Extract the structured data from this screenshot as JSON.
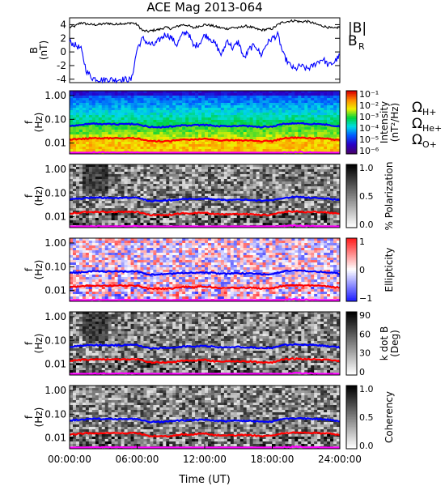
{
  "chart_data": {
    "type": "spectrogram",
    "title": "ACE Mag 2013-064",
    "xlabel": "Time (UT)",
    "xticks": [
      "00:00:00",
      "06:00:00",
      "12:00:00",
      "18:00:00",
      "24:00:00"
    ],
    "xrange_hours": [
      0,
      24
    ],
    "colors": {
      "B": "#000000",
      "BR": "#0000ff",
      "H+": "#0000ff",
      "He+": "#ff0000",
      "O+": "#ff00ff"
    },
    "line_panel": {
      "ylabel_1": "B",
      "ylabel_2": "(nT)",
      "ylim": [
        -4.5,
        5
      ],
      "yticks": [
        "4",
        "2",
        "0",
        "-2",
        "-4"
      ],
      "legend": {
        "B_label": "|B|",
        "BR_base": "B",
        "BR_sub": "R"
      },
      "series": [
        {
          "key": "B",
          "t": [
            0,
            0.5,
            1,
            1.5,
            2,
            2.5,
            3,
            3.5,
            4,
            4.5,
            5,
            5.5,
            6,
            6.5,
            7,
            7.5,
            8,
            8.5,
            9,
            9.5,
            10,
            10.5,
            11,
            11.5,
            12,
            12.5,
            13,
            13.5,
            14,
            14.5,
            15,
            15.5,
            16,
            16.5,
            17,
            17.5,
            18,
            18.5,
            19,
            19.5,
            20,
            20.5,
            21,
            21.5,
            22,
            22.5,
            23,
            23.5,
            24
          ],
          "v": [
            3.6,
            3.8,
            4.3,
            4.1,
            4.0,
            4.0,
            4.1,
            4.2,
            4.0,
            4.2,
            4.1,
            4.3,
            4.0,
            3.1,
            3.0,
            3.2,
            3.3,
            3.6,
            3.4,
            3.7,
            4.0,
            3.9,
            3.5,
            3.8,
            4.0,
            3.9,
            3.7,
            3.5,
            3.4,
            3.6,
            3.5,
            3.8,
            3.7,
            3.4,
            3.2,
            3.3,
            3.4,
            4.0,
            4.4,
            4.5,
            4.6,
            4.4,
            4.5,
            4.3,
            4.0,
            3.8,
            3.6,
            3.4,
            3.7
          ]
        },
        {
          "key": "BR",
          "t": [
            0,
            0.5,
            1,
            1.5,
            2,
            2.5,
            3,
            3.5,
            4,
            4.5,
            5,
            5.5,
            6,
            6.5,
            7,
            7.5,
            8,
            8.5,
            9,
            9.5,
            10,
            10.5,
            11,
            11.5,
            12,
            12.5,
            13,
            13.5,
            14,
            14.5,
            15,
            15.5,
            16,
            16.5,
            17,
            17.5,
            18,
            18.5,
            19,
            19.5,
            20,
            20.5,
            21,
            21.5,
            22,
            22.5,
            23,
            23.5,
            24
          ],
          "v": [
            1.5,
            1.0,
            0.5,
            -2.8,
            -3.8,
            -4.0,
            -4.1,
            -4.0,
            -4.1,
            -4.0,
            -4.0,
            -4.1,
            0.5,
            2.0,
            1.2,
            1.0,
            1.8,
            2.6,
            2.2,
            1.0,
            2.5,
            3.0,
            0.8,
            1.2,
            2.5,
            2.0,
            1.0,
            -0.5,
            1.8,
            0.5,
            1.5,
            -1.0,
            0.5,
            1.0,
            -0.5,
            1.2,
            2.0,
            2.5,
            -0.5,
            -1.8,
            -2.6,
            -2.0,
            -2.5,
            -2.2,
            -1.5,
            -1.0,
            -2.0,
            -1.5,
            -0.5
          ]
        }
      ]
    },
    "spectral_panels": [
      {
        "name": "intensity",
        "ylabel_1": "f",
        "ylabel_2": "(Hz)",
        "yticks": [
          "1.00",
          "0.10",
          "0.01"
        ],
        "colorbar": {
          "label_1": "Intensity",
          "label_2": "(nT²/Hz)",
          "scale": "log",
          "ticks": [
            "10⁻¹",
            "10⁻²",
            "10⁻³",
            "10⁻⁴",
            "10⁻⁵",
            "10⁻⁶"
          ]
        },
        "legend": [
          {
            "base": "Ω",
            "sub": "H+",
            "key": "H+"
          },
          {
            "base": "Ω",
            "sub": "He+",
            "key": "He+"
          },
          {
            "base": "Ω",
            "sub": "O+",
            "key": "O+"
          }
        ]
      },
      {
        "name": "polarization",
        "ylabel_1": "f",
        "ylabel_2": "(Hz)",
        "yticks": [
          "1.00",
          "0.10",
          "0.01"
        ],
        "colorbar": {
          "label_1": "% Polarization",
          "label_2": "",
          "ticks": [
            "1.0",
            "0.5",
            "0.0"
          ]
        }
      },
      {
        "name": "ellipticity",
        "ylabel_1": "f",
        "ylabel_2": "(Hz)",
        "yticks": [
          "1.00",
          "0.10",
          "0.01"
        ],
        "colorbar": {
          "label_1": "Ellipticity",
          "label_2": "",
          "ticks": [
            "1",
            "0",
            "−1"
          ]
        }
      },
      {
        "name": "kdotb",
        "ylabel_1": "f",
        "ylabel_2": "(Hz)",
        "yticks": [
          "1.00",
          "0.10",
          "0.01"
        ],
        "colorbar": {
          "label_1": "k dot B",
          "label_2": "(Deg)",
          "ticks": [
            "90",
            "60",
            "30",
            "0"
          ]
        }
      },
      {
        "name": "coherency",
        "ylabel_1": "f",
        "ylabel_2": "(Hz)",
        "yticks": [
          "1.00",
          "0.10",
          "0.01"
        ],
        "colorbar": {
          "label_1": "Coherency",
          "label_2": "",
          "ticks": [
            "1.0",
            "0.5",
            "0.0"
          ]
        }
      }
    ],
    "gyrofrequency_lines_hz": {
      "t": [
        0,
        1,
        2,
        3,
        4,
        5,
        6,
        7,
        8,
        9,
        10,
        11,
        12,
        13,
        14,
        15,
        16,
        17,
        18,
        19,
        20,
        21,
        22,
        23,
        24
      ],
      "H+": [
        0.055,
        0.058,
        0.065,
        0.063,
        0.062,
        0.063,
        0.064,
        0.047,
        0.047,
        0.05,
        0.055,
        0.056,
        0.058,
        0.053,
        0.05,
        0.053,
        0.051,
        0.048,
        0.049,
        0.064,
        0.068,
        0.066,
        0.063,
        0.058,
        0.05
      ],
      "He+": [
        0.014,
        0.015,
        0.016,
        0.016,
        0.016,
        0.016,
        0.016,
        0.012,
        0.012,
        0.012,
        0.014,
        0.014,
        0.015,
        0.013,
        0.013,
        0.013,
        0.013,
        0.012,
        0.012,
        0.016,
        0.017,
        0.016,
        0.016,
        0.015,
        0.013
      ],
      "O+": [
        0.0035,
        0.0036,
        0.004,
        0.004,
        0.0039,
        0.004,
        0.004,
        0.003,
        0.003,
        0.0031,
        0.0034,
        0.0035,
        0.0036,
        0.0033,
        0.0031,
        0.0033,
        0.0032,
        0.003,
        0.0031,
        0.004,
        0.0042,
        0.0041,
        0.0039,
        0.0036,
        0.0031
      ]
    }
  }
}
